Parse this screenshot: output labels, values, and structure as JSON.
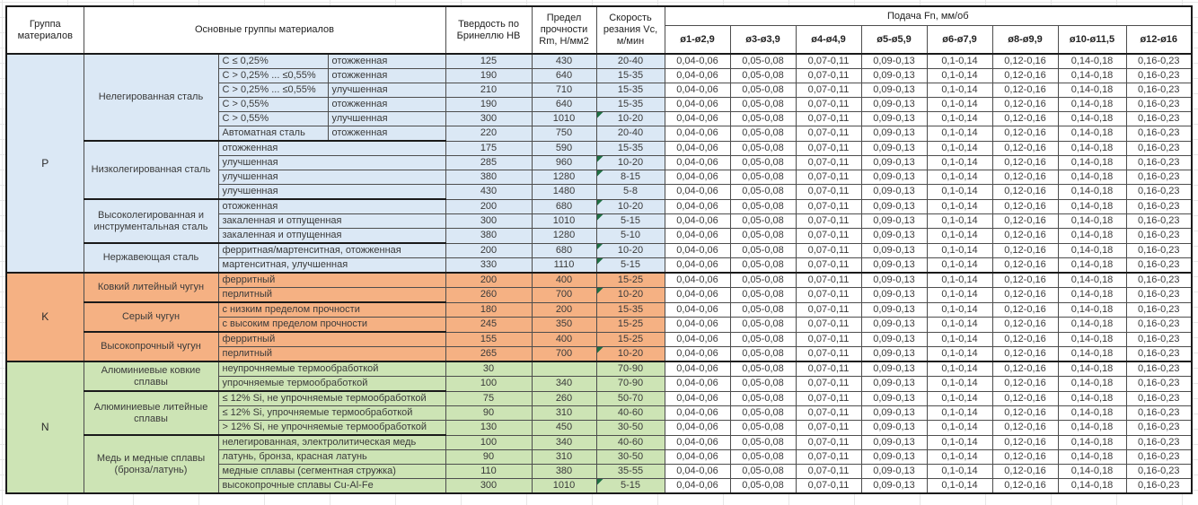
{
  "header": {
    "col_group": "Группа материалов",
    "col_main_groups": "Основные группы материалов",
    "col_hardness": "Твердость по Бринеллю HB",
    "col_strength": "Предел прочности Rm, Н/мм2",
    "col_speed": "Скорость резания Vc, м/мин",
    "col_feed": "Подача Fn, мм/об",
    "feed_columns": [
      "ø1-ø2,9",
      "ø3-ø3,9",
      "ø4-ø4,9",
      "ø5-ø5,9",
      "ø6-ø7,9",
      "ø8-ø9,9",
      "ø10-ø11,5",
      "ø12-ø16"
    ]
  },
  "colors": {
    "section_p_fill": "#dbe8f5",
    "section_k_fill": "#f5b183",
    "section_n_fill": "#cde4b5",
    "note_marker_green": "#1f7044"
  },
  "feed_values": [
    "0,04-0,06",
    "0,05-0,08",
    "0,07-0,11",
    "0,09-0,13",
    "0,1-0,14",
    "0,12-0,16",
    "0,14-0,18",
    "0,16-0,23"
  ],
  "sections": [
    {
      "group": "P",
      "color_key": "p",
      "subgroups": [
        {
          "name": "Нелегированная сталь",
          "rows": [
            {
              "sub": "C ≤ 0,25%",
              "state": "отожженная",
              "hb": "125",
              "rm": "430",
              "vc": "20-40",
              "mark": false
            },
            {
              "sub": "C > 0,25% ... ≤0,55%",
              "state": "отожженная",
              "hb": "190",
              "rm": "640",
              "vc": "15-35",
              "mark": false
            },
            {
              "sub": "C > 0,25% ... ≤0,55%",
              "state": "улучшенная",
              "hb": "210",
              "rm": "710",
              "vc": "15-35",
              "mark": false
            },
            {
              "sub": "C > 0,55%",
              "state": "отожженная",
              "hb": "190",
              "rm": "640",
              "vc": "15-35",
              "mark": false
            },
            {
              "sub": "C > 0,55%",
              "state": "улучшенная",
              "hb": "300",
              "rm": "1010",
              "vc": "10-20",
              "mark": true
            },
            {
              "sub": "Автоматная сталь",
              "state": "отожженная",
              "hb": "220",
              "rm": "750",
              "vc": "20-40",
              "mark": false
            }
          ]
        },
        {
          "name": "Низколегированная сталь",
          "rows": [
            {
              "desc": "отожженная",
              "hb": "175",
              "rm": "590",
              "vc": "15-35",
              "mark": false
            },
            {
              "desc": "улучшенная",
              "hb": "285",
              "rm": "960",
              "vc": "10-20",
              "mark": true
            },
            {
              "desc": "улучшенная",
              "hb": "380",
              "rm": "1280",
              "vc": "8-15",
              "mark": true
            },
            {
              "desc": "улучшенная",
              "hb": "430",
              "rm": "1480",
              "vc": "5-8",
              "mark": false
            }
          ]
        },
        {
          "name": "Высоколегированная и инструментальная сталь",
          "rows": [
            {
              "desc": "отожженная",
              "hb": "200",
              "rm": "680",
              "vc": "10-20",
              "mark": true
            },
            {
              "desc": "закаленная и отпущенная",
              "hb": "300",
              "rm": "1010",
              "vc": "5-15",
              "mark": true
            },
            {
              "desc": "закаленная и отпущенная",
              "hb": "380",
              "rm": "1280",
              "vc": "5-10",
              "mark": false
            }
          ]
        },
        {
          "name": "Нержавеющая сталь",
          "rows": [
            {
              "desc": "ферритная/мартенситная, отожженная",
              "hb": "200",
              "rm": "680",
              "vc": "10-20",
              "mark": true
            },
            {
              "desc": "мартенситная, улучшенная",
              "hb": "330",
              "rm": "1110",
              "vc": "5-15",
              "mark": true
            }
          ]
        }
      ]
    },
    {
      "group": "K",
      "color_key": "k",
      "subgroups": [
        {
          "name": "Ковкий литейный чугун",
          "rows": [
            {
              "desc": "ферритный",
              "hb": "200",
              "rm": "400",
              "vc": "15-25",
              "mark": false
            },
            {
              "desc": "перлитный",
              "hb": "260",
              "rm": "700",
              "vc": "10-20",
              "mark": true
            }
          ]
        },
        {
          "name": "Серый чугун",
          "rows": [
            {
              "desc": "с низким пределом прочности",
              "hb": "180",
              "rm": "200",
              "vc": "15-35",
              "mark": false
            },
            {
              "desc": "с высоким пределом прочности",
              "hb": "245",
              "rm": "350",
              "vc": "15-25",
              "mark": false
            }
          ]
        },
        {
          "name": "Высокопрочный чугун",
          "rows": [
            {
              "desc": "ферритный",
              "hb": "155",
              "rm": "400",
              "vc": "15-25",
              "mark": false
            },
            {
              "desc": "перлитный",
              "hb": "265",
              "rm": "700",
              "vc": "10-20",
              "mark": true
            }
          ]
        }
      ]
    },
    {
      "group": "N",
      "color_key": "n",
      "subgroups": [
        {
          "name": "Алюминиевые ковкие сплавы",
          "rows": [
            {
              "desc": "неупрочняемые термообработкой",
              "hb": "30",
              "rm": "",
              "vc": "70-90",
              "mark": false
            },
            {
              "desc": "упрочняемые термообработкой",
              "hb": "100",
              "rm": "340",
              "vc": "70-90",
              "mark": false
            }
          ]
        },
        {
          "name": "Алюминиевые литейные сплавы",
          "rows": [
            {
              "desc": "≤ 12% Si, не упрочняемые термообработкой",
              "hb": "75",
              "rm": "260",
              "vc": "50-70",
              "mark": false
            },
            {
              "desc": "≤ 12% Si, упрочняемые термообработкой",
              "hb": "90",
              "rm": "310",
              "vc": "40-60",
              "mark": false
            },
            {
              "desc": "> 12% Si, не упрочняемые термообработкой",
              "hb": "130",
              "rm": "450",
              "vc": "30-50",
              "mark": false
            }
          ]
        },
        {
          "name": "Медь и медные сплавы (бронза/латунь)",
          "rows": [
            {
              "desc": "нелегированная, электролитическая медь",
              "hb": "100",
              "rm": "340",
              "vc": "40-60",
              "mark": false
            },
            {
              "desc": "латунь, бронза, красная латунь",
              "hb": "90",
              "rm": "310",
              "vc": "30-50",
              "mark": false
            },
            {
              "desc": "медные сплавы (сегментная стружка)",
              "hb": "110",
              "rm": "380",
              "vc": "35-55",
              "mark": false
            },
            {
              "desc": "высокопрочные сплавы Cu-Al-Fe",
              "hb": "300",
              "rm": "1010",
              "vc": "5-15",
              "mark": true
            }
          ]
        }
      ]
    }
  ]
}
